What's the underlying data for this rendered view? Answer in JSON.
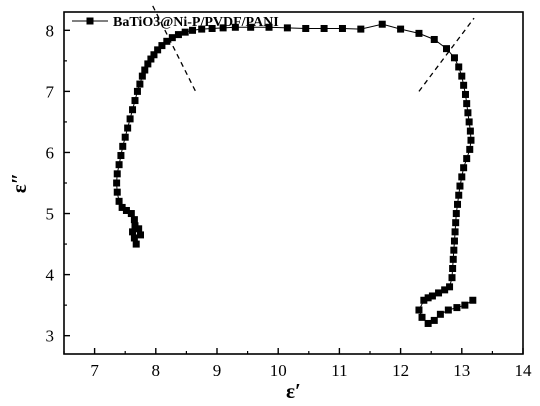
{
  "chart_data": {
    "type": "scatter",
    "title": "",
    "xlabel": "ε′",
    "ylabel": "ε″",
    "xlim": [
      6.5,
      14
    ],
    "ylim": [
      2.7,
      8.3
    ],
    "xticks": [
      "7",
      "8",
      "9",
      "10",
      "11",
      "12",
      "13",
      "14"
    ],
    "yticks": [
      "3",
      "4",
      "5",
      "6",
      "7",
      "8"
    ],
    "grid": false,
    "legend_position": "top-left",
    "line_color": "#000000",
    "series": [
      {
        "name": "BaTiO3@Ni-P/PVDF/PANI",
        "marker": "square",
        "x": [
          7.68,
          7.65,
          7.62,
          7.66,
          7.72,
          7.75,
          7.65,
          7.6,
          7.52,
          7.45,
          7.4,
          7.37,
          7.36,
          7.37,
          7.4,
          7.43,
          7.46,
          7.5,
          7.54,
          7.58,
          7.62,
          7.66,
          7.7,
          7.74,
          7.78,
          7.82,
          7.87,
          7.92,
          7.97,
          8.03,
          8.1,
          8.18,
          8.27,
          8.37,
          8.48,
          8.6,
          8.75,
          8.92,
          9.1,
          9.3,
          9.55,
          9.85,
          10.15,
          10.45,
          10.75,
          11.05,
          11.35,
          11.7,
          12.0,
          12.3,
          12.55,
          12.75,
          12.88,
          12.95,
          13.0,
          13.03,
          13.06,
          13.08,
          13.1,
          13.12,
          13.14,
          13.15,
          13.13,
          13.08,
          13.03,
          13.0,
          12.97,
          12.95,
          12.93,
          12.91,
          12.9,
          12.89,
          12.88,
          12.87,
          12.86,
          12.85,
          12.84,
          12.8,
          12.72,
          12.62,
          12.52,
          12.45,
          12.38,
          12.3,
          12.35,
          12.45,
          12.55,
          12.65,
          12.78,
          12.92,
          13.05,
          13.18
        ],
        "y": [
          4.5,
          4.6,
          4.7,
          4.8,
          4.75,
          4.65,
          4.9,
          5.0,
          5.05,
          5.1,
          5.2,
          5.35,
          5.5,
          5.65,
          5.8,
          5.95,
          6.1,
          6.25,
          6.4,
          6.55,
          6.7,
          6.85,
          7.0,
          7.12,
          7.25,
          7.35,
          7.45,
          7.53,
          7.6,
          7.68,
          7.75,
          7.82,
          7.88,
          7.93,
          7.97,
          8.0,
          8.02,
          8.03,
          8.04,
          8.05,
          8.05,
          8.05,
          8.04,
          8.03,
          8.03,
          8.03,
          8.02,
          8.1,
          8.02,
          7.95,
          7.85,
          7.7,
          7.55,
          7.4,
          7.25,
          7.1,
          6.95,
          6.8,
          6.65,
          6.5,
          6.35,
          6.2,
          6.05,
          5.9,
          5.75,
          5.6,
          5.45,
          5.3,
          5.15,
          5.0,
          4.85,
          4.7,
          4.55,
          4.4,
          4.25,
          4.1,
          3.95,
          3.8,
          3.75,
          3.7,
          3.65,
          3.62,
          3.58,
          3.42,
          3.3,
          3.2,
          3.25,
          3.35,
          3.42,
          3.46,
          3.5,
          3.58
        ]
      }
    ]
  }
}
